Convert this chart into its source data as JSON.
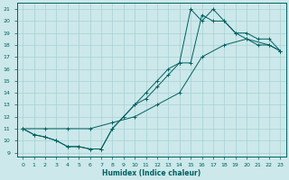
{
  "xlabel": "Humidex (Indice chaleur)",
  "bg_color": "#cce8ea",
  "grid_color": "#a8d0d4",
  "line_color": "#006060",
  "xlim": [
    -0.5,
    23.5
  ],
  "ylim": [
    8.7,
    21.5
  ],
  "xticks": [
    0,
    1,
    2,
    3,
    4,
    5,
    6,
    7,
    8,
    9,
    10,
    11,
    12,
    13,
    14,
    15,
    16,
    17,
    18,
    19,
    20,
    21,
    22,
    23
  ],
  "yticks": [
    9,
    10,
    11,
    12,
    13,
    14,
    15,
    16,
    17,
    18,
    19,
    20,
    21
  ],
  "line1_x": [
    0,
    1,
    2,
    3,
    4,
    5,
    6,
    7,
    8,
    9,
    10,
    11,
    12,
    13,
    14,
    15,
    16,
    17,
    18,
    19,
    20,
    21,
    22,
    23
  ],
  "line1_y": [
    11,
    10.5,
    10.3,
    10,
    9.5,
    9.5,
    9.3,
    9.3,
    11,
    12,
    13,
    14,
    15,
    16,
    16.5,
    21,
    20,
    21,
    20,
    19,
    18.5,
    18,
    18,
    17.5
  ],
  "line2_x": [
    0,
    1,
    2,
    3,
    4,
    5,
    6,
    7,
    8,
    9,
    10,
    11,
    12,
    13,
    14,
    15,
    16,
    17,
    18,
    19,
    20,
    21,
    22,
    23
  ],
  "line2_y": [
    11,
    10.5,
    10.3,
    10,
    9.5,
    9.5,
    9.3,
    9.3,
    11,
    12,
    13,
    13.5,
    14.5,
    15.5,
    16.5,
    16.5,
    20.5,
    20,
    20,
    19,
    19,
    18.5,
    18.5,
    17.5
  ],
  "line3_x": [
    0,
    2,
    4,
    6,
    8,
    10,
    12,
    14,
    16,
    18,
    20,
    22,
    23
  ],
  "line3_y": [
    11,
    11,
    11,
    11,
    11.5,
    12,
    13,
    14,
    17,
    18,
    18.5,
    18,
    17.5
  ]
}
